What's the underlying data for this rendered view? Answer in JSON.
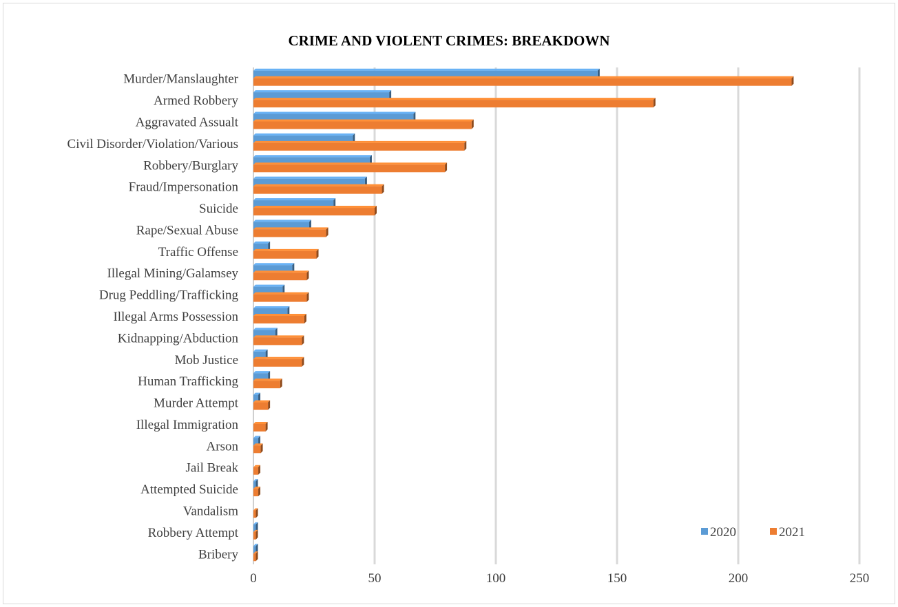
{
  "chart_data": {
    "type": "bar",
    "orientation": "horizontal",
    "title": "CRIME AND VIOLENT CRIMES: BREAKDOWN",
    "xlabel": "",
    "ylabel": "",
    "xlim": [
      0,
      250
    ],
    "x_ticks": [
      "0",
      "50",
      "100",
      "150",
      "200",
      "250"
    ],
    "grid": "vertical",
    "legend_position": "bottom-right",
    "categories": [
      "Murder/Manslaughter",
      "Armed Robbery",
      "Aggravated Assualt",
      "Civil Disorder/Violation/Various",
      "Robbery/Burglary",
      "Fraud/Impersonation",
      "Suicide",
      "Rape/Sexual Abuse",
      "Traffic Offense",
      "Illegal Mining/Galamsey",
      "Drug Peddling/Trafficking",
      "Illegal Arms Possession",
      "Kidnapping/Abduction",
      "Mob Justice",
      "Human Trafficking",
      "Murder Attempt",
      "Illegal Immigration",
      "Arson",
      "Jail Break",
      "Attempted Suicide",
      "Vandalism",
      "Robbery Attempt",
      "Bribery"
    ],
    "series": [
      {
        "name": "2020",
        "color": "#5b9bd5",
        "values": [
          142,
          56,
          66,
          41,
          48,
          46,
          33,
          23,
          6,
          16,
          12,
          14,
          9,
          5,
          6,
          2,
          0,
          2,
          0,
          1,
          0,
          1,
          1
        ]
      },
      {
        "name": "2021",
        "color": "#ed7d31",
        "values": [
          222,
          165,
          90,
          87,
          79,
          53,
          50,
          30,
          26,
          22,
          22,
          21,
          20,
          20,
          11,
          6,
          5,
          3,
          2,
          2,
          1,
          1,
          1
        ]
      }
    ]
  }
}
